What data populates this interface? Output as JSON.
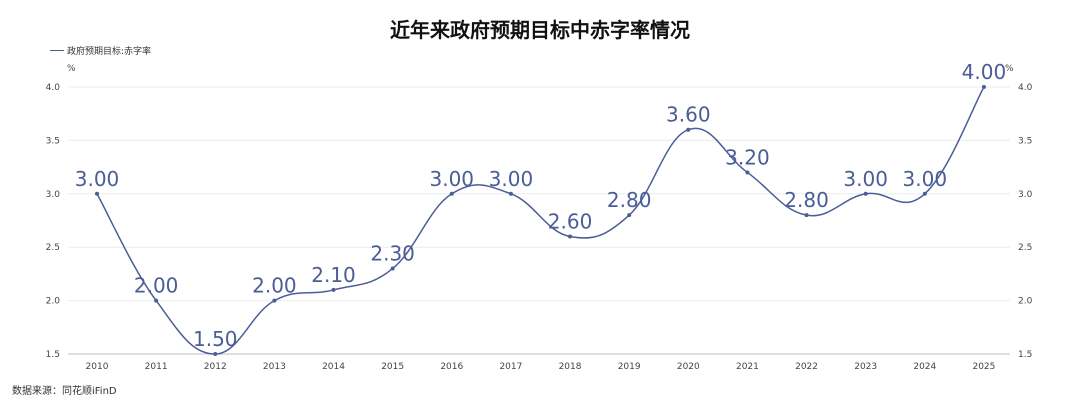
{
  "chart_data": {
    "type": "line",
    "title": "近年来政府预期目标中赤字率情况",
    "legend": "政府预期目标:赤字率",
    "unit": "%",
    "source": "数据来源：同花顺iFinD",
    "categories": [
      "2010",
      "2011",
      "2012",
      "2013",
      "2014",
      "2015",
      "2016",
      "2017",
      "2018",
      "2019",
      "2020",
      "2021",
      "2022",
      "2023",
      "2024",
      "2025"
    ],
    "series": [
      {
        "name": "政府预期目标:赤字率",
        "values": [
          3.0,
          2.0,
          1.5,
          2.0,
          2.1,
          2.3,
          3.0,
          3.0,
          2.6,
          2.8,
          3.6,
          3.2,
          2.8,
          3.0,
          3.0,
          4.0
        ]
      }
    ],
    "data_labels": [
      "3.00",
      "2.00",
      "1.50",
      "2.00",
      "2.10",
      "2.30",
      "3.00",
      "3.00",
      "2.60",
      "2.80",
      "3.60",
      "3.20",
      "2.80",
      "3.00",
      "3.00",
      "4.00"
    ],
    "yticks": [
      "1.5",
      "2.0",
      "2.5",
      "3.0",
      "3.5",
      "4.0"
    ],
    "ylim": [
      1.5,
      4.0
    ],
    "grid": true,
    "legend_position": "top-left",
    "line_color": "#4a5d96"
  }
}
